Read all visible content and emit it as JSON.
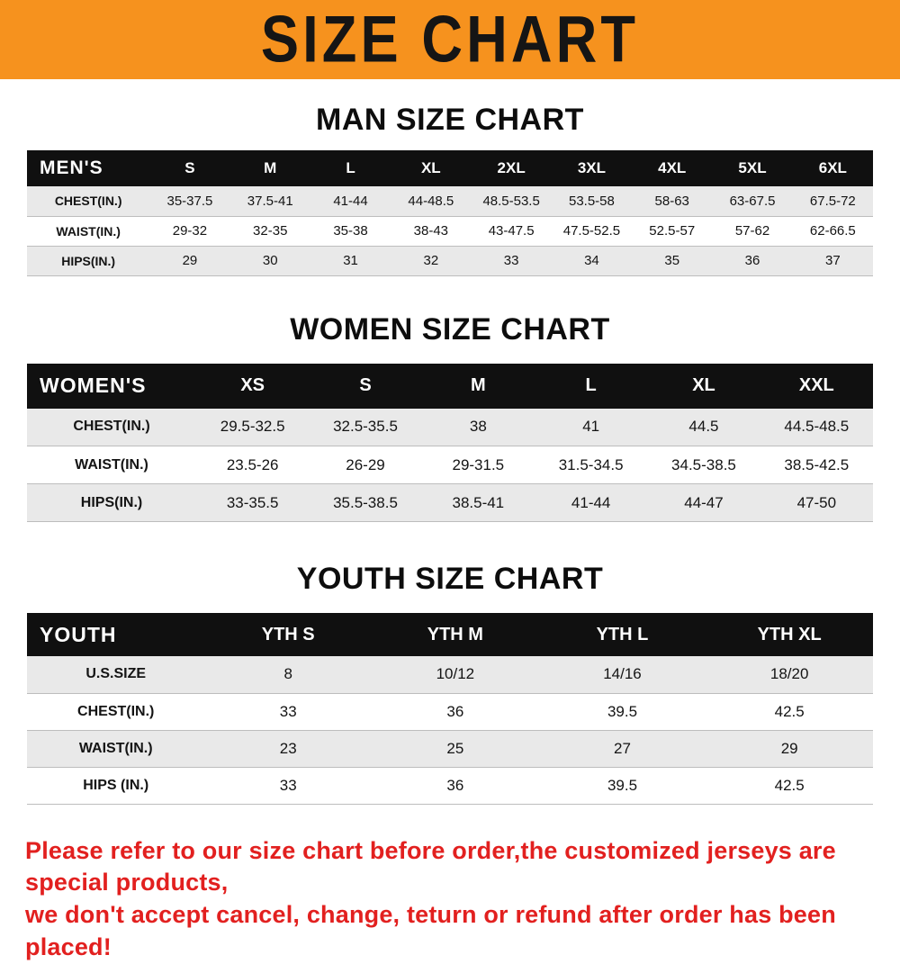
{
  "banner": {
    "title": "SIZE CHART"
  },
  "colors": {
    "banner_bg": "#f6921e",
    "table_header_bg": "#101010",
    "row_alt_bg": "#e9e9e9",
    "footer_text": "#e2201f"
  },
  "sections": [
    {
      "id": "men",
      "heading": "MAN SIZE CHART",
      "table": {
        "header": [
          "MEN'S",
          "S",
          "M",
          "L",
          "XL",
          "2XL",
          "3XL",
          "4XL",
          "5XL",
          "6XL"
        ],
        "rows": [
          {
            "label": "CHEST(IN.)",
            "values": [
              "35-37.5",
              "37.5-41",
              "41-44",
              "44-48.5",
              "48.5-53.5",
              "53.5-58",
              "58-63",
              "63-67.5",
              "67.5-72"
            ]
          },
          {
            "label": "WAIST(IN.)",
            "values": [
              "29-32",
              "32-35",
              "35-38",
              "38-43",
              "43-47.5",
              "47.5-52.5",
              "52.5-57",
              "57-62",
              "62-66.5"
            ]
          },
          {
            "label": "HIPS(IN.)",
            "values": [
              "29",
              "30",
              "31",
              "32",
              "33",
              "34",
              "35",
              "36",
              "37"
            ]
          }
        ]
      }
    },
    {
      "id": "women",
      "heading": "WOMEN SIZE CHART",
      "table": {
        "header": [
          "WOMEN'S",
          "XS",
          "S",
          "M",
          "L",
          "XL",
          "XXL"
        ],
        "rows": [
          {
            "label": "CHEST(IN.)",
            "values": [
              "29.5-32.5",
              "32.5-35.5",
              "38",
              "41",
              "44.5",
              "44.5-48.5"
            ]
          },
          {
            "label": "WAIST(IN.)",
            "values": [
              "23.5-26",
              "26-29",
              "29-31.5",
              "31.5-34.5",
              "34.5-38.5",
              "38.5-42.5"
            ]
          },
          {
            "label": "HIPS(IN.)",
            "values": [
              "33-35.5",
              "35.5-38.5",
              "38.5-41",
              "41-44",
              "44-47",
              "47-50"
            ]
          }
        ]
      }
    },
    {
      "id": "youth",
      "heading": "YOUTH SIZE CHART",
      "table": {
        "header": [
          "YOUTH",
          "YTH S",
          "YTH M",
          "YTH L",
          "YTH XL"
        ],
        "rows": [
          {
            "label": "U.S.SIZE",
            "values": [
              "8",
              "10/12",
              "14/16",
              "18/20"
            ]
          },
          {
            "label": "CHEST(IN.)",
            "values": [
              "33",
              "36",
              "39.5",
              "42.5"
            ]
          },
          {
            "label": "WAIST(IN.)",
            "values": [
              "23",
              "25",
              "27",
              "29"
            ]
          },
          {
            "label": "HIPS (IN.)",
            "values": [
              "33",
              "36",
              "39.5",
              "42.5"
            ]
          }
        ]
      }
    }
  ],
  "footer": {
    "lines": [
      "Please refer to our size chart before order,the customized jerseys are special products,",
      "we don't accept cancel, change, teturn or refund after order has been placed!"
    ]
  }
}
